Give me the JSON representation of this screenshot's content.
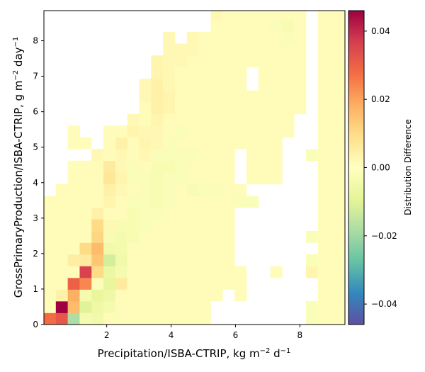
{
  "chart_data": {
    "type": "heatmap",
    "xlabel_main": "Precipitation/ISBA-CTRIP,  kg m",
    "xlabel_sup1": "−2",
    "xlabel_mid": " d",
    "xlabel_sup2": "−1",
    "ylabel_main": "GrossPrimaryProduction/ISBA-CTRIP,  g m",
    "ylabel_sup1": "−2",
    "ylabel_mid": " day",
    "ylabel_sup2": "−1",
    "colorbar_label": "Distribution Difference",
    "xlim": [
      0.05,
      9.4
    ],
    "ylim": [
      0,
      8.85
    ],
    "x_ticks": [
      2,
      4,
      6,
      8
    ],
    "y_ticks": [
      0,
      1,
      2,
      3,
      4,
      5,
      6,
      7,
      8
    ],
    "colorbar_ticks": [
      "0.04",
      "0.02",
      "0.00",
      "−0.02",
      "−0.04"
    ],
    "colorbar_tick_values": [
      0.04,
      0.02,
      0.0,
      -0.02,
      -0.04
    ],
    "vlim": [
      -0.046,
      0.046
    ],
    "colormap": "Spectral_r",
    "cell_size_x": 0.37,
    "cell_size_y": 0.33,
    "anomalies": [
      {
        "i": 0,
        "j": 0,
        "v": 0.028
      },
      {
        "i": 1,
        "j": 0,
        "v": 0.032
      },
      {
        "i": 2,
        "j": 0,
        "v": -0.018
      },
      {
        "i": 3,
        "j": 0,
        "v": -0.004
      },
      {
        "i": 4,
        "j": 0,
        "v": -0.005
      },
      {
        "i": 1,
        "j": 1,
        "v": 0.046
      },
      {
        "i": 2,
        "j": 1,
        "v": 0.016
      },
      {
        "i": 3,
        "j": 1,
        "v": -0.01
      },
      {
        "i": 4,
        "j": 1,
        "v": -0.006
      },
      {
        "i": 5,
        "j": 1,
        "v": -0.004
      },
      {
        "i": 1,
        "j": 2,
        "v": 0.004
      },
      {
        "i": 2,
        "j": 2,
        "v": 0.018
      },
      {
        "i": 3,
        "j": 2,
        "v": -0.004
      },
      {
        "i": 4,
        "j": 2,
        "v": -0.008
      },
      {
        "i": 5,
        "j": 2,
        "v": -0.006
      },
      {
        "i": 2,
        "j": 3,
        "v": 0.03
      },
      {
        "i": 3,
        "j": 3,
        "v": 0.024
      },
      {
        "i": 4,
        "j": 3,
        "v": -0.002
      },
      {
        "i": 5,
        "j": 3,
        "v": -0.008
      },
      {
        "i": 6,
        "j": 3,
        "v": 0.006
      },
      {
        "i": 3,
        "j": 4,
        "v": 0.036
      },
      {
        "i": 4,
        "j": 4,
        "v": 0.01
      },
      {
        "i": 5,
        "j": 4,
        "v": -0.007
      },
      {
        "i": 6,
        "j": 4,
        "v": -0.004
      },
      {
        "i": 2,
        "j": 5,
        "v": 0.005
      },
      {
        "i": 3,
        "j": 5,
        "v": 0.006
      },
      {
        "i": 4,
        "j": 5,
        "v": 0.014
      },
      {
        "i": 5,
        "j": 5,
        "v": -0.012
      },
      {
        "i": 6,
        "j": 5,
        "v": -0.005
      },
      {
        "i": 3,
        "j": 6,
        "v": 0.01
      },
      {
        "i": 4,
        "j": 6,
        "v": 0.016
      },
      {
        "i": 5,
        "j": 6,
        "v": -0.005
      },
      {
        "i": 6,
        "j": 6,
        "v": -0.004
      },
      {
        "i": 4,
        "j": 7,
        "v": 0.011
      },
      {
        "i": 5,
        "j": 7,
        "v": -0.003
      },
      {
        "i": 6,
        "j": 7,
        "v": -0.004
      },
      {
        "i": 7,
        "j": 7,
        "v": -0.003
      },
      {
        "i": 4,
        "j": 8,
        "v": 0.01
      },
      {
        "i": 5,
        "j": 8,
        "v": 0.002
      },
      {
        "i": 6,
        "j": 8,
        "v": -0.003
      },
      {
        "i": 7,
        "j": 8,
        "v": -0.003
      },
      {
        "i": 8,
        "j": 8,
        "v": -0.002
      },
      {
        "i": 4,
        "j": 9,
        "v": 0.004
      },
      {
        "i": 7,
        "j": 9,
        "v": -0.003
      },
      {
        "i": 8,
        "j": 9,
        "v": -0.002
      },
      {
        "i": 9,
        "j": 9,
        "v": -0.002
      },
      {
        "i": 5,
        "j": 10,
        "v": 0.003
      },
      {
        "i": 7,
        "j": 10,
        "v": -0.002
      },
      {
        "i": 8,
        "j": 10,
        "v": -0.002
      },
      {
        "i": 9,
        "j": 10,
        "v": -0.003
      },
      {
        "i": 10,
        "j": 10,
        "v": -0.002
      },
      {
        "i": 5,
        "j": 11,
        "v": 0.004
      },
      {
        "i": 6,
        "j": 11,
        "v": 0.002
      },
      {
        "i": 8,
        "j": 11,
        "v": -0.002
      },
      {
        "i": 9,
        "j": 11,
        "v": -0.003
      },
      {
        "i": 10,
        "j": 11,
        "v": -0.002
      },
      {
        "i": 5,
        "j": 12,
        "v": 0.007
      },
      {
        "i": 6,
        "j": 12,
        "v": 0.003
      },
      {
        "i": 7,
        "j": 12,
        "v": -0.002
      },
      {
        "i": 8,
        "j": 12,
        "v": -0.002
      },
      {
        "i": 9,
        "j": 12,
        "v": -0.003
      },
      {
        "i": 10,
        "j": 12,
        "v": -0.002
      },
      {
        "i": 5,
        "j": 13,
        "v": 0.006
      },
      {
        "i": 6,
        "j": 13,
        "v": 0.002
      },
      {
        "i": 7,
        "j": 13,
        "v": -0.002
      },
      {
        "i": 9,
        "j": 13,
        "v": -0.003
      },
      {
        "i": 10,
        "j": 13,
        "v": -0.003
      },
      {
        "i": 11,
        "j": 13,
        "v": -0.002
      },
      {
        "i": 4,
        "j": 14,
        "v": 0.002
      },
      {
        "i": 6,
        "j": 14,
        "v": 0.002
      },
      {
        "i": 8,
        "j": 14,
        "v": 0.002
      },
      {
        "i": 9,
        "j": 14,
        "v": -0.002
      },
      {
        "i": 10,
        "j": 14,
        "v": -0.002
      },
      {
        "i": 11,
        "j": 14,
        "v": -0.002
      },
      {
        "i": 12,
        "j": 14,
        "v": -0.002
      },
      {
        "i": 6,
        "j": 15,
        "v": 0.004
      },
      {
        "i": 8,
        "j": 15,
        "v": 0.003
      },
      {
        "i": 9,
        "j": 15,
        "v": 0.002
      },
      {
        "i": 10,
        "j": 15,
        "v": -0.002
      },
      {
        "i": 7,
        "j": 16,
        "v": 0.003
      },
      {
        "i": 8,
        "j": 16,
        "v": 0.002
      },
      {
        "i": 9,
        "j": 16,
        "v": 0.002
      },
      {
        "i": 11,
        "j": 16,
        "v": -0.002
      },
      {
        "i": 7,
        "j": 17,
        "v": 0.002
      },
      {
        "i": 9,
        "j": 17,
        "v": 0.003
      },
      {
        "i": 7,
        "j": 18,
        "v": 0.002
      },
      {
        "i": 9,
        "j": 18,
        "v": 0.004
      },
      {
        "i": 10,
        "j": 18,
        "v": 0.003
      },
      {
        "i": 8,
        "j": 19,
        "v": 0.002
      },
      {
        "i": 9,
        "j": 19,
        "v": 0.004
      },
      {
        "i": 10,
        "j": 19,
        "v": 0.003
      },
      {
        "i": 8,
        "j": 20,
        "v": 0.002
      },
      {
        "i": 9,
        "j": 20,
        "v": 0.004
      },
      {
        "i": 10,
        "j": 20,
        "v": 0.002
      },
      {
        "i": 8,
        "j": 21,
        "v": 0.003
      },
      {
        "i": 9,
        "j": 21,
        "v": 0.003
      },
      {
        "i": 10,
        "j": 21,
        "v": 0.002
      },
      {
        "i": 9,
        "j": 22,
        "v": 0.003
      },
      {
        "i": 10,
        "j": 22,
        "v": 0.002
      },
      {
        "i": 11,
        "j": 22,
        "v": 0.002
      },
      {
        "i": 9,
        "j": 23,
        "v": 0.002
      },
      {
        "i": 10,
        "j": 23,
        "v": 0.002
      },
      {
        "i": 11,
        "j": 23,
        "v": 0.002
      },
      {
        "i": 12,
        "j": 23,
        "v": 0.002
      },
      {
        "i": 10,
        "j": 24,
        "v": 0.002
      },
      {
        "i": 11,
        "j": 24,
        "v": 0.003
      },
      {
        "i": 12,
        "j": 24,
        "v": 0.002
      },
      {
        "i": 13,
        "j": 25,
        "v": 0.002
      },
      {
        "i": 19,
        "j": 25,
        "v": -0.002
      },
      {
        "i": 14,
        "j": 26,
        "v": 0.002
      },
      {
        "i": 20,
        "j": 25,
        "v": -0.003
      },
      {
        "i": 20,
        "j": 24,
        "v": -0.002
      },
      {
        "i": 12,
        "j": 11,
        "v": -0.003
      },
      {
        "i": 13,
        "j": 11,
        "v": -0.002
      },
      {
        "i": 11,
        "j": 12,
        "v": -0.002
      },
      {
        "i": 14,
        "j": 11,
        "v": -0.002
      },
      {
        "i": 16,
        "j": 10,
        "v": -0.002
      },
      {
        "i": 17,
        "j": 10,
        "v": -0.002
      },
      {
        "i": 22,
        "j": 0,
        "v": -0.002
      },
      {
        "i": 22,
        "j": 1,
        "v": -0.002
      },
      {
        "i": 22,
        "j": 4,
        "v": 0.003
      },
      {
        "i": 22,
        "j": 5,
        "v": -0.002
      },
      {
        "i": 22,
        "j": 7,
        "v": -0.002
      },
      {
        "i": 22,
        "j": 14,
        "v": -0.002
      }
    ],
    "base_value": 0.0009,
    "blank_cells": [
      [
        0,
        11
      ],
      [
        0,
        12
      ],
      [
        0,
        13
      ],
      [
        0,
        14
      ],
      [
        0,
        15
      ],
      [
        0,
        16
      ],
      [
        0,
        17
      ],
      [
        0,
        18
      ],
      [
        0,
        19
      ],
      [
        0,
        20
      ],
      [
        0,
        21
      ],
      [
        0,
        22
      ],
      [
        0,
        23
      ],
      [
        0,
        24
      ],
      [
        0,
        25
      ],
      [
        0,
        26
      ],
      [
        1,
        12
      ],
      [
        1,
        13
      ],
      [
        1,
        14
      ],
      [
        1,
        15
      ],
      [
        1,
        16
      ],
      [
        1,
        17
      ],
      [
        1,
        18
      ],
      [
        1,
        19
      ],
      [
        1,
        20
      ],
      [
        1,
        21
      ],
      [
        1,
        22
      ],
      [
        1,
        23
      ],
      [
        1,
        24
      ],
      [
        1,
        25
      ],
      [
        1,
        26
      ],
      [
        2,
        14
      ],
      [
        2,
        17
      ],
      [
        2,
        18
      ],
      [
        2,
        19
      ],
      [
        2,
        20
      ],
      [
        2,
        21
      ],
      [
        2,
        22
      ],
      [
        2,
        23
      ],
      [
        2,
        24
      ],
      [
        2,
        25
      ],
      [
        2,
        26
      ],
      [
        3,
        14
      ],
      [
        3,
        16
      ],
      [
        3,
        17
      ],
      [
        3,
        18
      ],
      [
        3,
        19
      ],
      [
        3,
        20
      ],
      [
        3,
        21
      ],
      [
        3,
        22
      ],
      [
        3,
        23
      ],
      [
        3,
        24
      ],
      [
        3,
        25
      ],
      [
        3,
        26
      ],
      [
        4,
        15
      ],
      [
        4,
        16
      ],
      [
        4,
        17
      ],
      [
        4,
        18
      ],
      [
        4,
        19
      ],
      [
        4,
        20
      ],
      [
        4,
        21
      ],
      [
        4,
        22
      ],
      [
        4,
        23
      ],
      [
        4,
        24
      ],
      [
        4,
        25
      ],
      [
        4,
        26
      ],
      [
        5,
        17
      ],
      [
        5,
        18
      ],
      [
        5,
        19
      ],
      [
        5,
        20
      ],
      [
        5,
        21
      ],
      [
        5,
        22
      ],
      [
        5,
        23
      ],
      [
        5,
        24
      ],
      [
        5,
        25
      ],
      [
        5,
        26
      ],
      [
        6,
        17
      ],
      [
        6,
        18
      ],
      [
        6,
        19
      ],
      [
        6,
        20
      ],
      [
        6,
        21
      ],
      [
        6,
        22
      ],
      [
        6,
        23
      ],
      [
        6,
        24
      ],
      [
        6,
        25
      ],
      [
        6,
        26
      ],
      [
        7,
        18
      ],
      [
        7,
        19
      ],
      [
        7,
        20
      ],
      [
        7,
        21
      ],
      [
        7,
        22
      ],
      [
        7,
        23
      ],
      [
        7,
        24
      ],
      [
        7,
        25
      ],
      [
        7,
        26
      ],
      [
        8,
        21
      ],
      [
        8,
        22
      ],
      [
        8,
        23
      ],
      [
        8,
        24
      ],
      [
        8,
        25
      ],
      [
        8,
        26
      ],
      [
        9,
        23
      ],
      [
        9,
        24
      ],
      [
        9,
        25
      ],
      [
        9,
        26
      ],
      [
        10,
        25
      ],
      [
        10,
        26
      ],
      [
        11,
        26
      ],
      [
        12,
        26
      ],
      [
        13,
        26
      ],
      [
        11,
        25
      ],
      [
        12,
        25
      ],
      [
        17,
        4
      ],
      [
        18,
        4
      ],
      [
        14,
        0
      ],
      [
        15,
        0
      ],
      [
        14,
        1
      ],
      [
        15,
        1
      ],
      [
        15,
        2
      ],
      [
        16,
        0
      ],
      [
        17,
        0
      ],
      [
        16,
        1
      ],
      [
        17,
        1
      ],
      [
        17,
        2
      ],
      [
        18,
        2
      ],
      [
        18,
        1
      ],
      [
        18,
        0
      ],
      [
        19,
        0
      ],
      [
        19,
        1
      ],
      [
        19,
        2
      ],
      [
        20,
        0
      ],
      [
        21,
        0
      ],
      [
        20,
        1
      ],
      [
        21,
        1
      ],
      [
        20,
        2
      ],
      [
        21,
        2
      ],
      [
        20,
        3
      ],
      [
        21,
        3
      ],
      [
        21,
        4
      ],
      [
        22,
        2
      ],
      [
        22,
        3
      ],
      [
        17,
        3
      ],
      [
        17,
        4
      ],
      [
        18,
        3
      ],
      [
        19,
        3
      ],
      [
        20,
        4
      ],
      [
        21,
        5
      ],
      [
        22,
        6
      ],
      [
        20,
        5
      ],
      [
        20,
        6
      ],
      [
        21,
        6
      ],
      [
        21,
        7
      ],
      [
        20,
        7
      ],
      [
        21,
        8
      ],
      [
        22,
        8
      ],
      [
        22,
        9
      ],
      [
        22,
        10
      ],
      [
        22,
        11
      ],
      [
        22,
        12
      ],
      [
        22,
        13
      ],
      [
        21,
        9
      ],
      [
        21,
        10
      ],
      [
        21,
        11
      ],
      [
        21,
        12
      ],
      [
        21,
        13
      ],
      [
        20,
        13
      ],
      [
        20,
        12
      ],
      [
        21,
        14
      ],
      [
        18,
        5
      ],
      [
        19,
        5
      ],
      [
        16,
        5
      ],
      [
        17,
        5
      ],
      [
        22,
        15
      ],
      [
        22,
        16
      ],
      [
        22,
        17
      ],
      [
        22,
        18
      ],
      [
        22,
        19
      ],
      [
        22,
        20
      ],
      [
        22,
        21
      ],
      [
        22,
        22
      ],
      [
        22,
        23
      ],
      [
        22,
        24
      ],
      [
        22,
        25
      ],
      [
        22,
        26
      ],
      [
        16,
        12
      ],
      [
        16,
        13
      ],
      [
        16,
        14
      ],
      [
        16,
        6
      ],
      [
        16,
        7
      ],
      [
        16,
        8
      ],
      [
        17,
        6
      ],
      [
        17,
        7
      ],
      [
        17,
        8
      ],
      [
        17,
        9
      ],
      [
        16,
        9
      ],
      [
        18,
        8
      ],
      [
        18,
        9
      ],
      [
        19,
        9
      ],
      [
        20,
        9
      ],
      [
        19,
        8
      ],
      [
        20,
        8
      ],
      [
        19,
        10
      ],
      [
        20,
        10
      ],
      [
        20,
        11
      ],
      [
        18,
        6
      ],
      [
        19,
        6
      ],
      [
        19,
        7
      ],
      [
        18,
        7
      ],
      [
        18,
        10
      ],
      [
        19,
        11
      ],
      [
        17,
        11
      ],
      [
        18,
        11
      ],
      [
        20,
        14
      ],
      [
        20,
        15
      ],
      [
        21,
        15
      ],
      [
        21,
        16
      ],
      [
        17,
        21
      ],
      [
        17,
        20
      ],
      [
        21,
        17
      ],
      [
        11,
        24
      ],
      [
        13,
        25
      ]
    ]
  }
}
